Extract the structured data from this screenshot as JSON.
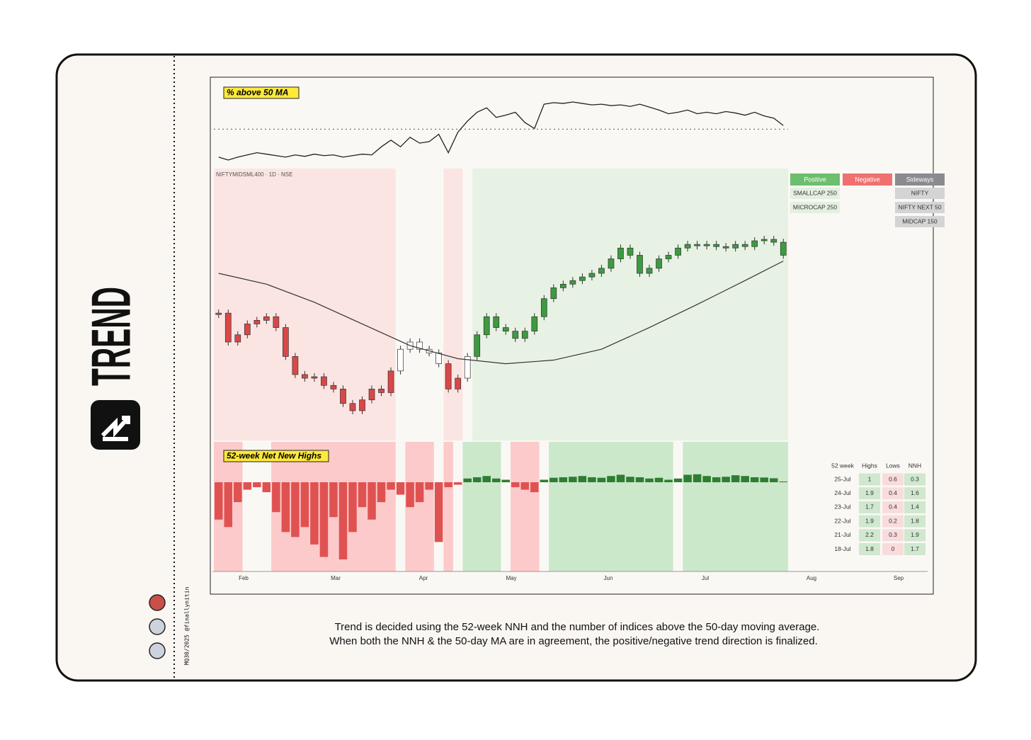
{
  "sidebar": {
    "title": "TREND",
    "credit": "MQ30/2025 @finallynitin"
  },
  "symbol": "NIFTYMIDSML400 · 1D · NSE",
  "x_axis": {
    "labels": [
      "Feb",
      "Mar",
      "Apr",
      "May",
      "Jun",
      "Jul",
      "Aug",
      "Sep"
    ]
  },
  "chart_data": [
    {
      "type": "line",
      "title": "% above 50 MA",
      "color": "#222222",
      "threshold": 50,
      "values": [
        12,
        8,
        12,
        15,
        18,
        16,
        14,
        12,
        15,
        13,
        16,
        14,
        15,
        12,
        14,
        16,
        15,
        26,
        35,
        26,
        39,
        31,
        33,
        43,
        18,
        46,
        61,
        73,
        79,
        66,
        69,
        73,
        59,
        51,
        84,
        86,
        85,
        87,
        85,
        83,
        84,
        82,
        83,
        81,
        84,
        80,
        76,
        71,
        73,
        76,
        71,
        73,
        71,
        74,
        72,
        69,
        73,
        68,
        65,
        55
      ]
    },
    {
      "type": "candlestick",
      "values": [
        18400,
        17800,
        17950,
        18175,
        18250,
        18325,
        18100,
        17500,
        17125,
        17050,
        17080,
        16900,
        16825,
        16525,
        16375,
        16600,
        16825,
        16750,
        17200,
        17650,
        17800,
        17650,
        17575,
        17350,
        16825,
        17050,
        17500,
        17950,
        18325,
        18100,
        18025,
        17875,
        18025,
        18325,
        18700,
        18925,
        19000,
        19075,
        19150,
        19225,
        19330,
        19525,
        19750,
        19600,
        19225,
        19330,
        19525,
        19600,
        19750,
        19825,
        19825,
        19825,
        19780,
        19750,
        19825,
        19780,
        19900,
        19930,
        19870,
        19600
      ],
      "ma": {
        "x": [
          0,
          5,
          10,
          15,
          20,
          25,
          30,
          35,
          40,
          45,
          50,
          55,
          59
        ],
        "values": [
          19225,
          19000,
          18625,
          18175,
          17725,
          17455,
          17350,
          17425,
          17650,
          18100,
          18580,
          19075,
          19480
        ],
        "color": "#333333"
      },
      "segments": [
        {
          "start": 0,
          "end": 19,
          "fill": "#fbe5e3",
          "candle": "#d94848"
        },
        {
          "start": 19,
          "end": 24,
          "fill": "#faf8f4",
          "candle": "#ffffff"
        },
        {
          "start": 24,
          "end": 26,
          "fill": "#fbe5e3",
          "candle": "#d94848"
        },
        {
          "start": 26,
          "end": 27,
          "fill": "#faf8f4",
          "candle": "#ffffff"
        },
        {
          "start": 27,
          "end": 60,
          "fill": "#e8f2e4",
          "candle": "#3d9a40"
        }
      ]
    },
    {
      "type": "bar",
      "title": "52-week Net New Highs",
      "values": [
        -15,
        -18,
        -8,
        -3,
        -2,
        -4,
        -12,
        -20,
        -22,
        -18,
        -25,
        -30,
        -14,
        -31,
        -20,
        -10,
        -15,
        -8,
        -3,
        -5,
        -10,
        -8,
        -3,
        -24,
        -2,
        -1,
        1.5,
        2,
        2.5,
        1.5,
        1,
        -2,
        -3,
        -4,
        1,
        1.8,
        2,
        2.2,
        2.5,
        2,
        1.8,
        2.5,
        3,
        2.2,
        2,
        1.5,
        1.8,
        1,
        1.5,
        3,
        3.2,
        2.5,
        2,
        2.2,
        2.8,
        2.5,
        2,
        1.9,
        1.6,
        0.3
      ],
      "colors": {
        "up": "#2e7d32",
        "down": "#e05252"
      },
      "segments": [
        {
          "start": 0,
          "end": 3,
          "fill": "#fccaca"
        },
        {
          "start": 3,
          "end": 6,
          "fill": "#faf8f4"
        },
        {
          "start": 6,
          "end": 19,
          "fill": "#fccaca"
        },
        {
          "start": 19,
          "end": 20,
          "fill": "#faf8f4"
        },
        {
          "start": 20,
          "end": 23,
          "fill": "#fccaca"
        },
        {
          "start": 23,
          "end": 24,
          "fill": "#faf8f4"
        },
        {
          "start": 24,
          "end": 25,
          "fill": "#fccaca"
        },
        {
          "start": 25,
          "end": 26,
          "fill": "#faf8f4"
        },
        {
          "start": 26,
          "end": 30,
          "fill": "#cbe8cb"
        },
        {
          "start": 30,
          "end": 31,
          "fill": "#faf8f4"
        },
        {
          "start": 31,
          "end": 34,
          "fill": "#fccaca"
        },
        {
          "start": 34,
          "end": 35,
          "fill": "#faf8f4"
        },
        {
          "start": 35,
          "end": 48,
          "fill": "#cbe8cb"
        },
        {
          "start": 48,
          "end": 49,
          "fill": "#faf8f4"
        },
        {
          "start": 49,
          "end": 60,
          "fill": "#cbe8cb"
        }
      ]
    }
  ],
  "legend": {
    "columns": [
      {
        "header": "Positive",
        "color": "#6cbf6c",
        "cell": "#e4efe0",
        "items": [
          "SMALLCAP 250",
          "MICROCAP 250"
        ]
      },
      {
        "header": "Negative",
        "color": "#f07070",
        "cell": "#f8dcdc",
        "items": []
      },
      {
        "header": "Sideways",
        "color": "#8a8a90",
        "cell": "#d4d4d4",
        "items": [
          "NIFTY",
          "NIFTY NEXT 50",
          "MIDCAP 150"
        ]
      }
    ]
  },
  "trend_table": {
    "header": [
      "52 week",
      "Highs",
      "Lows",
      "NNH"
    ],
    "rows": [
      [
        "25-Jul",
        1,
        0.6,
        0.3
      ],
      [
        "24-Jul",
        1.9,
        0.4,
        1.6
      ],
      [
        "23-Jul",
        1.7,
        0.4,
        1.4
      ],
      [
        "22-Jul",
        1.9,
        0.2,
        1.8
      ],
      [
        "21-Jul",
        2.2,
        0.3,
        1.9
      ],
      [
        "18-Jul",
        1.8,
        0,
        1.7
      ]
    ]
  },
  "caption": [
    "Trend is decided using the 52-week NNH and the number of indices above the 50-day moving average.",
    "When both the NNH & the 50-day MA are in agreement, the positive/negative trend direction is finalized."
  ]
}
